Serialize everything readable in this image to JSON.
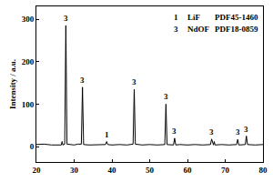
{
  "chart_data": {
    "type": "line",
    "y_label": "Intensity / a.u.",
    "color": "#000000",
    "x": [
      20,
      22,
      24,
      26,
      26.6,
      26.8,
      27.0,
      27.5,
      27.8,
      28.1,
      29,
      30,
      31,
      31.9,
      32.2,
      32.5,
      34,
      36,
      38.3,
      38.6,
      38.9,
      40,
      42,
      44,
      45.6,
      45.9,
      46.2,
      48,
      50,
      52,
      54.0,
      54.3,
      54.6,
      56.3,
      56.6,
      56.9,
      58,
      60,
      62,
      64,
      66.1,
      66.4,
      66.7,
      66.9,
      67.1,
      67.3,
      69,
      71,
      73.0,
      73.3,
      73.6,
      75.3,
      75.6,
      75.9,
      78,
      80
    ],
    "values": [
      5,
      6,
      4,
      5,
      4,
      12,
      4,
      6,
      285,
      6,
      5,
      4,
      6,
      6,
      140,
      5,
      4,
      5,
      5,
      12,
      5,
      4,
      5,
      4,
      6,
      135,
      6,
      4,
      5,
      4,
      5,
      100,
      5,
      4,
      20,
      4,
      5,
      4,
      5,
      4,
      5,
      18,
      5,
      4,
      12,
      4,
      5,
      4,
      5,
      17,
      4,
      5,
      25,
      5,
      4,
      5
    ],
    "xlim": [
      20,
      80
    ],
    "xticks": [
      20,
      30,
      40,
      50,
      60,
      70,
      80
    ],
    "ylim": [
      -36,
      330
    ],
    "yticks": [
      0,
      100,
      200,
      300
    ],
    "grid": false,
    "annotations": [
      {
        "text": "3",
        "x": 27.8,
        "y": 285
      },
      {
        "text": "3",
        "x": 32.2,
        "y": 140
      },
      {
        "text": "1",
        "x": 38.6,
        "y": 12
      },
      {
        "text": "3",
        "x": 45.9,
        "y": 135
      },
      {
        "text": "3",
        "x": 54.3,
        "y": 100
      },
      {
        "text": "3",
        "x": 56.6,
        "y": 20
      },
      {
        "text": "3",
        "x": 66.4,
        "y": 18
      },
      {
        "text": "3",
        "x": 73.3,
        "y": 17
      },
      {
        "text": "3",
        "x": 75.6,
        "y": 25
      }
    ],
    "key": [
      {
        "mark": "1",
        "phase": "LiF",
        "card": "PDF45-1460"
      },
      {
        "mark": "3",
        "phase": "NdOF",
        "card": "PDF18-0859"
      }
    ]
  }
}
